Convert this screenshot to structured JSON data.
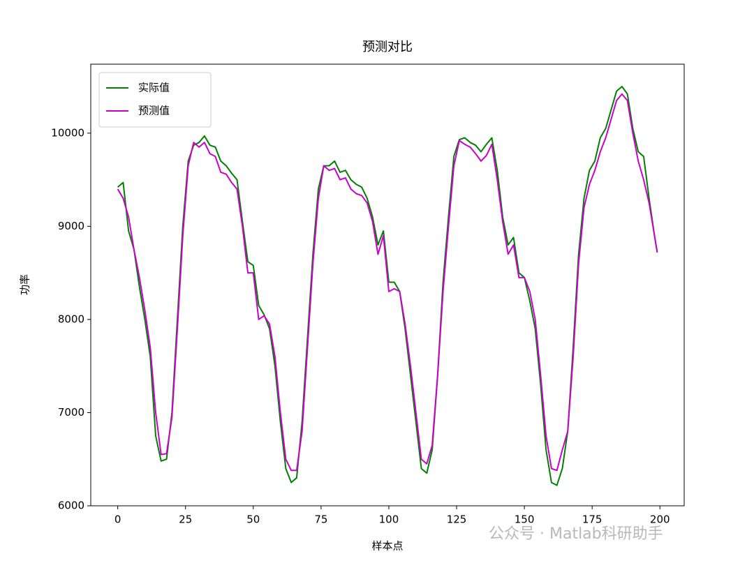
{
  "chart_data": {
    "type": "line",
    "title": "预测对比",
    "x_label": "样本点",
    "y_label": "功率",
    "watermark": "公众号 · Matlab科研助手",
    "x": [
      0,
      2,
      4,
      6,
      8,
      10,
      12,
      14,
      16,
      18,
      20,
      22,
      24,
      26,
      28,
      30,
      32,
      34,
      36,
      38,
      40,
      42,
      44,
      46,
      48,
      50,
      52,
      54,
      56,
      58,
      60,
      62,
      64,
      66,
      68,
      70,
      72,
      74,
      76,
      78,
      80,
      82,
      84,
      86,
      88,
      90,
      92,
      94,
      96,
      98,
      100,
      102,
      104,
      106,
      108,
      110,
      112,
      114,
      116,
      118,
      120,
      122,
      124,
      126,
      128,
      130,
      132,
      134,
      136,
      138,
      140,
      142,
      144,
      146,
      148,
      150,
      152,
      154,
      156,
      158,
      160,
      162,
      164,
      166,
      168,
      170,
      172,
      174,
      176,
      178,
      180,
      182,
      184,
      186,
      188,
      190,
      192,
      194,
      196,
      198,
      199
    ],
    "series": [
      {
        "name": "实际值",
        "color": "#008000",
        "values": [
          9420,
          9470,
          8950,
          8750,
          8350,
          8000,
          7600,
          6750,
          6480,
          6500,
          7000,
          8000,
          9000,
          9700,
          9870,
          9900,
          9970,
          9870,
          9850,
          9700,
          9650,
          9570,
          9500,
          9050,
          8620,
          8580,
          8150,
          8050,
          7900,
          7500,
          6900,
          6400,
          6250,
          6300,
          6900,
          7800,
          8700,
          9400,
          9650,
          9650,
          9700,
          9580,
          9600,
          9500,
          9450,
          9420,
          9300,
          9100,
          8800,
          8950,
          8400,
          8400,
          8300,
          7900,
          7400,
          6900,
          6400,
          6350,
          6600,
          7400,
          8400,
          9100,
          9750,
          9930,
          9950,
          9900,
          9870,
          9800,
          9880,
          9950,
          9600,
          9100,
          8800,
          8880,
          8500,
          8450,
          8200,
          7900,
          7300,
          6600,
          6250,
          6220,
          6400,
          6800,
          7700,
          8700,
          9300,
          9600,
          9700,
          9950,
          10050,
          10250,
          10450,
          10500,
          10420,
          10050,
          9800,
          9750,
          9300,
          8900,
          8720
        ]
      },
      {
        "name": "预测值",
        "color": "#cc00cc",
        "values": [
          9400,
          9300,
          9100,
          8750,
          8450,
          8100,
          7700,
          7000,
          6550,
          6560,
          6950,
          7900,
          8900,
          9650,
          9900,
          9850,
          9900,
          9780,
          9750,
          9580,
          9560,
          9470,
          9400,
          9000,
          8500,
          8500,
          8000,
          8040,
          7950,
          7600,
          7000,
          6500,
          6380,
          6380,
          6800,
          7700,
          8600,
          9300,
          9650,
          9600,
          9620,
          9500,
          9520,
          9400,
          9350,
          9330,
          9250,
          9050,
          8700,
          8900,
          8300,
          8330,
          8300,
          7950,
          7500,
          7000,
          6500,
          6450,
          6650,
          7400,
          8300,
          9000,
          9650,
          9920,
          9880,
          9850,
          9780,
          9700,
          9760,
          9880,
          9500,
          9050,
          8700,
          8800,
          8450,
          8450,
          8300,
          8000,
          7400,
          6750,
          6400,
          6380,
          6600,
          6800,
          7600,
          8600,
          9200,
          9450,
          9600,
          9800,
          9950,
          10150,
          10350,
          10420,
          10350,
          10000,
          9700,
          9500,
          9250,
          8900,
          8720
        ]
      }
    ],
    "xlim": [
      -9.95,
      208.95
    ],
    "ylim": [
      6000,
      10740
    ],
    "xticks": [
      0,
      25,
      50,
      75,
      100,
      125,
      150,
      175,
      200
    ],
    "yticks": [
      6000,
      7000,
      8000,
      9000,
      10000
    ],
    "legend": "upper left",
    "grid": false
  }
}
